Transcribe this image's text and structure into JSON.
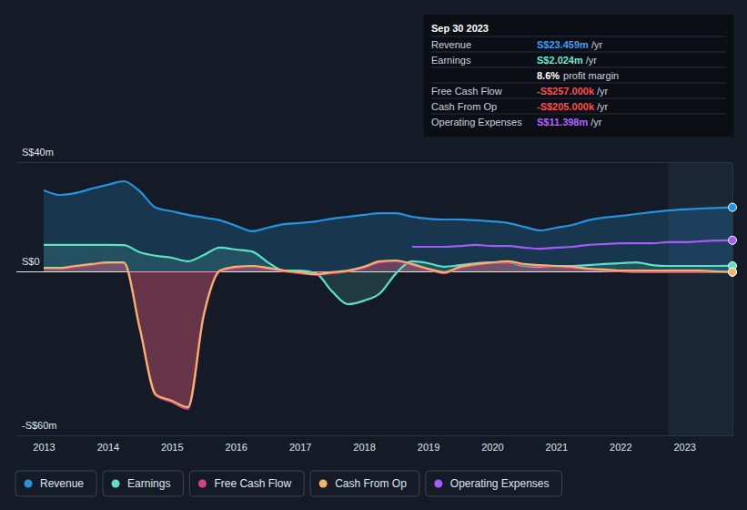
{
  "chart_data": {
    "type": "line",
    "x": [
      2013,
      2013.25,
      2013.5,
      2013.75,
      2014,
      2014.25,
      2014.5,
      2014.75,
      2015,
      2015.25,
      2015.5,
      2015.75,
      2016,
      2016.25,
      2016.5,
      2016.75,
      2017,
      2017.25,
      2017.5,
      2017.75,
      2018,
      2018.25,
      2018.5,
      2018.75,
      2019,
      2019.25,
      2019.5,
      2019.75,
      2020,
      2020.25,
      2020.5,
      2020.75,
      2021,
      2021.25,
      2021.5,
      2021.75,
      2022,
      2022.25,
      2022.5,
      2022.75,
      2023,
      2023.25,
      2023.5,
      2023.75
    ],
    "xlim": [
      2013,
      2023.75
    ],
    "xticks": [
      2013,
      2014,
      2015,
      2016,
      2017,
      2018,
      2019,
      2020,
      2021,
      2022,
      2023
    ],
    "ylim": [
      -60,
      40
    ],
    "yticks": [
      {
        "value": 40,
        "label": "S$40m"
      },
      {
        "value": 0,
        "label": "S$0"
      },
      {
        "value": -60,
        "label": "-S$60m"
      }
    ],
    "grid": true,
    "legend": "bottom",
    "highlight_range": [
      2022.75,
      2023.75
    ],
    "series": [
      {
        "name": "Revenue",
        "color": "#2394df",
        "values": [
          29.7,
          28.0,
          28.7,
          30.3,
          31.7,
          33.0,
          29.3,
          23.3,
          22.0,
          20.7,
          19.7,
          18.7,
          16.7,
          14.7,
          16.0,
          17.3,
          17.7,
          18.3,
          19.3,
          20.0,
          20.7,
          21.3,
          21.3,
          20.0,
          19.3,
          19.0,
          19.0,
          18.7,
          18.3,
          17.7,
          16.3,
          15.0,
          16.0,
          17.0,
          18.7,
          19.7,
          20.3,
          21.0,
          21.7,
          22.3,
          22.7,
          23.0,
          23.2,
          23.459
        ]
      },
      {
        "name": "Earnings",
        "color": "#5ce0c6",
        "values": [
          9.7,
          9.7,
          9.7,
          9.7,
          9.7,
          9.6,
          7.0,
          5.7,
          5.0,
          3.7,
          6.0,
          8.7,
          8.0,
          7.3,
          3.3,
          0.3,
          0.3,
          -0.7,
          -7.3,
          -12.0,
          -10.7,
          -8.0,
          -0.7,
          3.7,
          3.0,
          1.7,
          2.3,
          3.0,
          3.3,
          3.3,
          2.0,
          1.7,
          2.0,
          2.0,
          2.3,
          2.7,
          3.0,
          3.3,
          2.3,
          2.0,
          2.0,
          2.0,
          2.0,
          2.024
        ]
      },
      {
        "name": "Free Cash Flow",
        "color": "#d0457f",
        "values": [
          1.0,
          1.0,
          1.7,
          2.3,
          3.0,
          3.0,
          -21.2,
          -45.5,
          -47.8,
          -50.3,
          -16.2,
          0.0,
          1.3,
          1.7,
          1.0,
          0.0,
          -0.7,
          -1.3,
          -0.7,
          0.0,
          1.3,
          3.3,
          3.7,
          2.3,
          0.7,
          -0.7,
          1.3,
          2.3,
          3.0,
          3.3,
          2.3,
          2.0,
          1.7,
          1.3,
          0.7,
          0.3,
          0.0,
          -0.3,
          -0.3,
          -0.3,
          -0.3,
          -0.3,
          -0.3,
          -0.257
        ]
      },
      {
        "name": "Cash From Op",
        "color": "#f0b46c",
        "values": [
          1.3,
          1.3,
          2.0,
          2.7,
          3.3,
          3.3,
          -20.7,
          -45.0,
          -47.3,
          -49.7,
          -15.7,
          0.3,
          1.7,
          2.0,
          1.3,
          0.3,
          -0.3,
          -1.0,
          -0.3,
          0.3,
          1.7,
          3.7,
          4.0,
          2.7,
          1.0,
          -0.3,
          1.7,
          2.7,
          3.3,
          3.7,
          2.7,
          2.3,
          2.0,
          1.7,
          1.0,
          0.7,
          0.3,
          0.3,
          0.3,
          0.3,
          0.3,
          0.3,
          0.0,
          -0.205
        ]
      },
      {
        "name": "Operating Expenses",
        "color": "#a25cf7",
        "values": [
          null,
          null,
          null,
          null,
          null,
          null,
          null,
          null,
          null,
          null,
          null,
          null,
          null,
          null,
          null,
          null,
          null,
          null,
          null,
          null,
          null,
          null,
          null,
          9.0,
          9.0,
          9.0,
          9.3,
          9.7,
          9.3,
          9.3,
          8.7,
          8.3,
          8.7,
          9.0,
          9.7,
          10.0,
          10.3,
          10.3,
          10.3,
          10.7,
          10.7,
          11.0,
          11.3,
          11.398
        ]
      }
    ],
    "tooltip": {
      "date": "Sep 30 2023",
      "rows": [
        {
          "label": "Revenue",
          "value": "S$23.459m",
          "unit": "/yr",
          "color": "#3d9ff5"
        },
        {
          "label": "Earnings",
          "value": "S$2.024m",
          "unit": "/yr",
          "color": "#6ee7c9"
        },
        {
          "value": "8.6%",
          "label": "profit margin",
          "color": "#ffffff"
        },
        {
          "label": "Free Cash Flow",
          "value": "-S$257.000k",
          "unit": "/yr",
          "color": "#ff4d4d"
        },
        {
          "label": "Cash From Op",
          "value": "-S$205.000k",
          "unit": "/yr",
          "color": "#ff4d4d"
        },
        {
          "label": "Operating Expenses",
          "value": "S$11.398m",
          "unit": "/yr",
          "color": "#b066ff"
        }
      ]
    }
  }
}
